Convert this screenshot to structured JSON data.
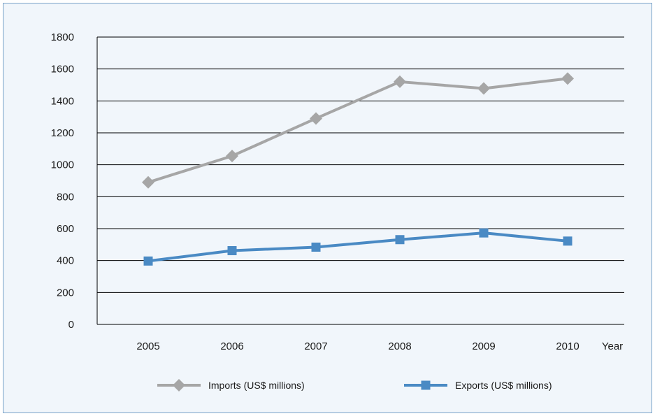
{
  "chart_data": {
    "type": "line",
    "title": "",
    "xlabel": "Year",
    "ylabel": "",
    "categories": [
      "2005",
      "2006",
      "2007",
      "2008",
      "2009",
      "2010"
    ],
    "ylim": [
      0,
      1800
    ],
    "yticks": [
      0,
      200,
      400,
      600,
      800,
      1000,
      1200,
      1400,
      1600,
      1800
    ],
    "grid": "horizontal",
    "legend_position": "bottom",
    "series": [
      {
        "name": "Imports (US$ millions)",
        "values": [
          890,
          1055,
          1290,
          1520,
          1478,
          1540
        ],
        "color": "#a6a6a6",
        "marker": "diamond"
      },
      {
        "name": "Exports (US$ millions)",
        "values": [
          397,
          462,
          484,
          531,
          573,
          522
        ],
        "color": "#4a8ac4",
        "marker": "square"
      }
    ]
  }
}
